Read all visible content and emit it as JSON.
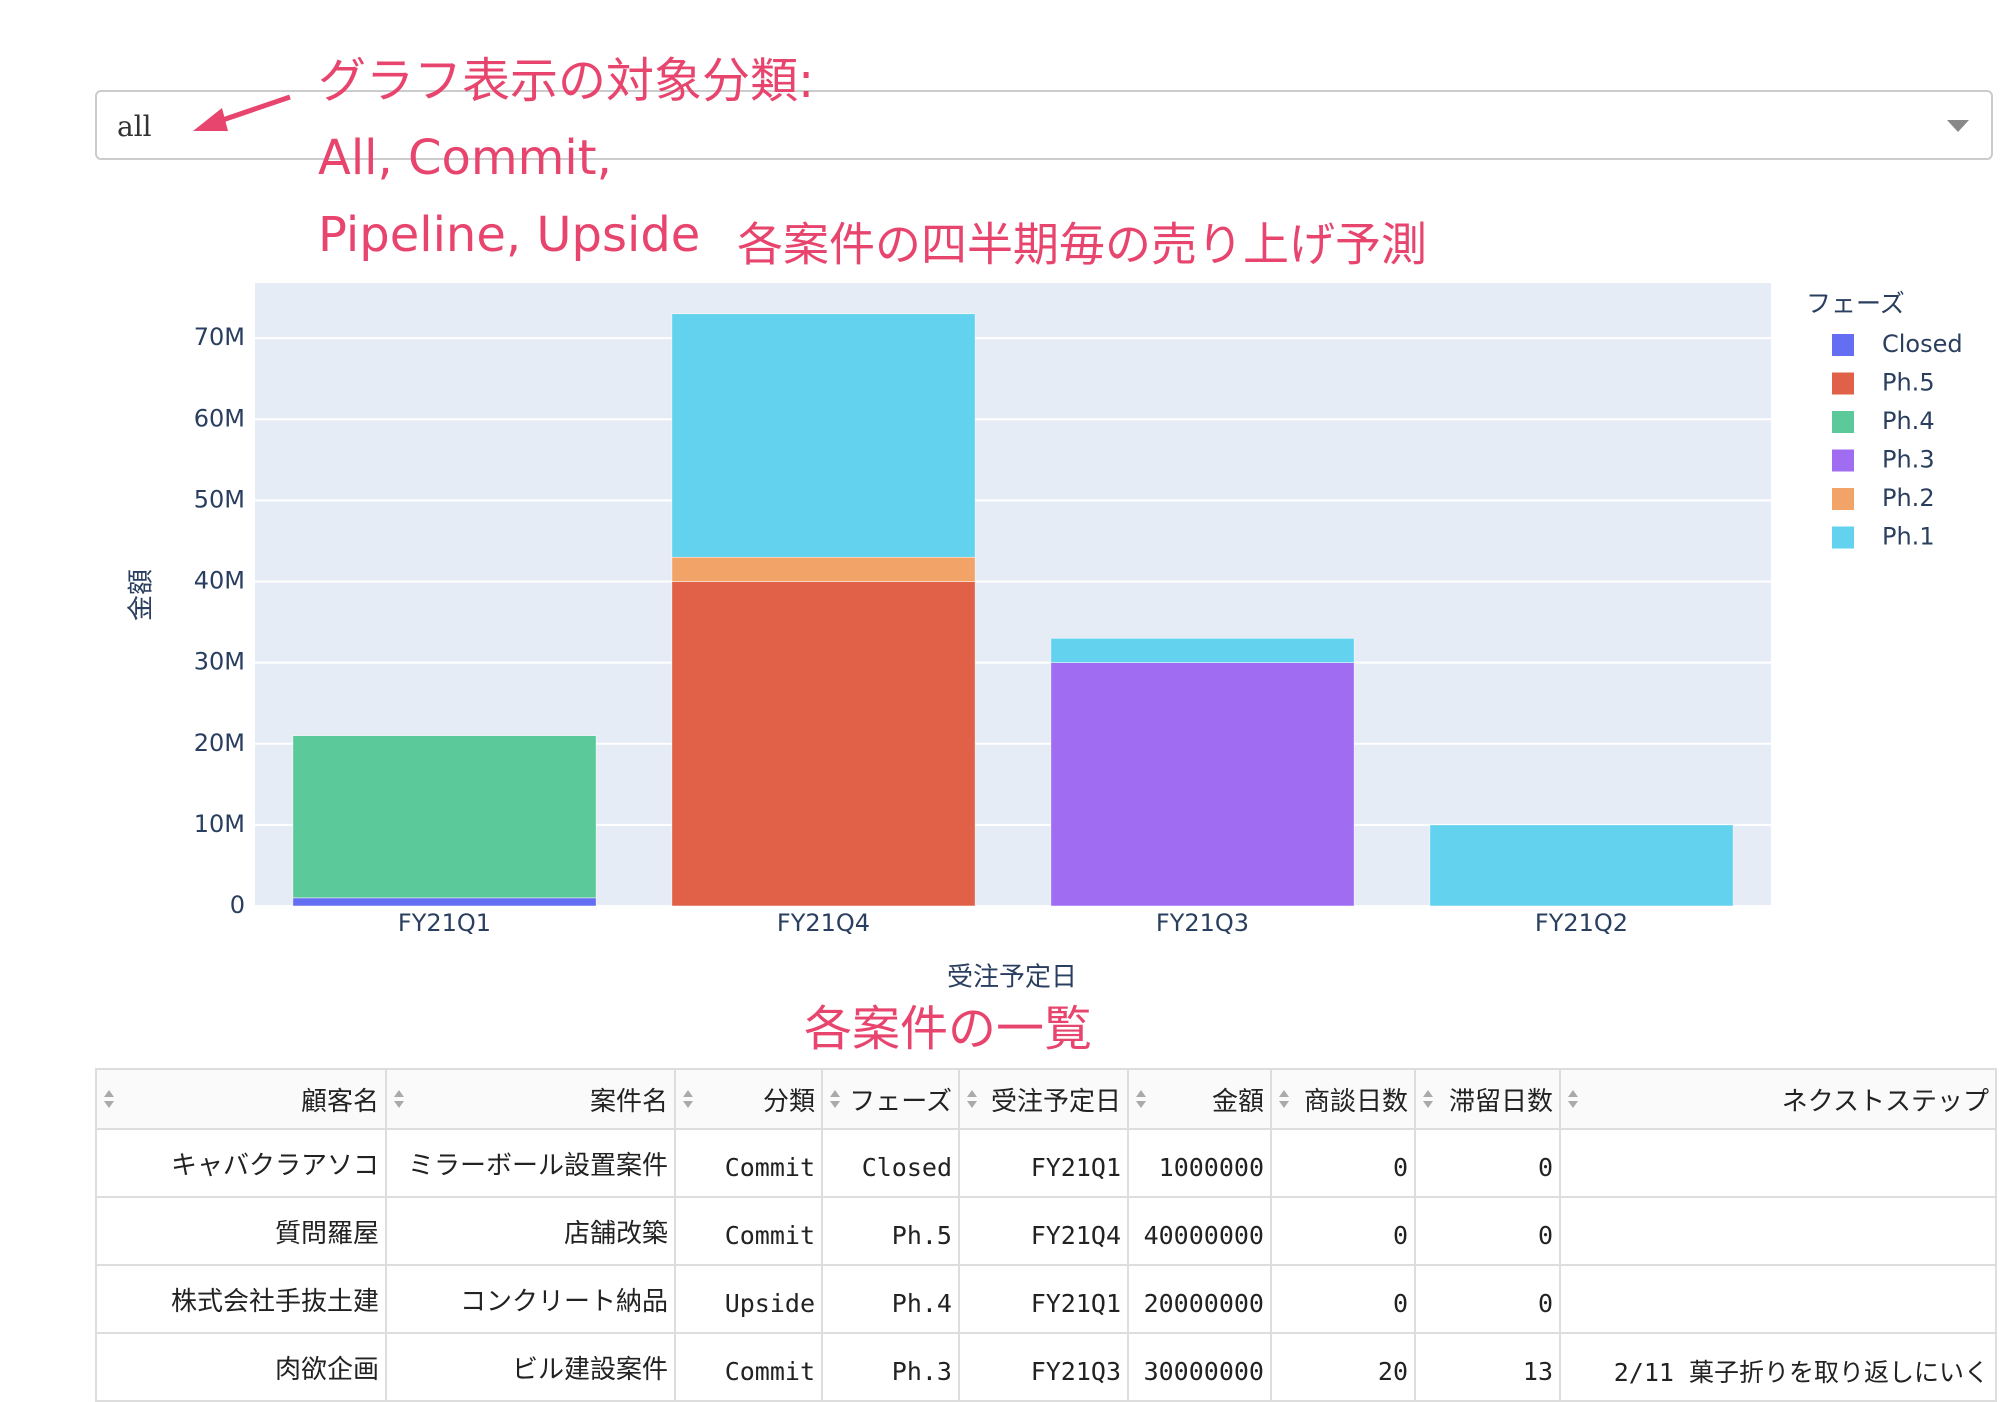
{
  "dropdown": {
    "value": "all"
  },
  "annotations": {
    "dropdown_note": [
      "グラフ表示の対象分類:",
      "All, Commit,",
      "Pipeline, Upside"
    ],
    "table_title": "各案件の一覧"
  },
  "chart_data": {
    "type": "stacked_bar",
    "title": "各案件の四半期毎の売り上げ予測",
    "x_label": "受注予定日",
    "y_label": "金額",
    "legend_title": "フェーズ",
    "legend_position": "right",
    "grid": true,
    "categories": [
      "FY21Q1",
      "FY21Q4",
      "FY21Q3",
      "FY21Q2"
    ],
    "series": [
      {
        "name": "Closed",
        "color": "#646ef2",
        "values": [
          1000000,
          null,
          null,
          null
        ]
      },
      {
        "name": "Ph.5",
        "color": "#e06048",
        "values": [
          null,
          40000000,
          null,
          null
        ]
      },
      {
        "name": "Ph.4",
        "color": "#5cc99a",
        "values": [
          20000000,
          null,
          null,
          null
        ]
      },
      {
        "name": "Ph.3",
        "color": "#a06cf2",
        "values": [
          null,
          null,
          30000000,
          null
        ]
      },
      {
        "name": "Ph.2",
        "color": "#f2a468",
        "values": [
          null,
          3000000,
          null,
          null
        ]
      },
      {
        "name": "Ph.1",
        "color": "#63d2ee",
        "values": [
          null,
          30000000,
          3000000,
          10000000
        ]
      }
    ],
    "ylim": [
      0,
      76800000
    ],
    "yticks": [
      0,
      {
        "value": 10000000,
        "label": "10M"
      },
      {
        "value": 20000000,
        "label": "20M"
      },
      {
        "value": 30000000,
        "label": "30M"
      },
      {
        "value": 40000000,
        "label": "40M"
      },
      {
        "value": 50000000,
        "label": "50M"
      },
      {
        "value": 60000000,
        "label": "60M"
      },
      {
        "value": 70000000,
        "label": "70M"
      }
    ]
  },
  "table": {
    "columns": [
      "顧客名",
      "案件名",
      "分類",
      "フェーズ",
      "受注予定日",
      "金額",
      "商談日数",
      "滞留日数",
      "ネクストステップ"
    ],
    "rows": [
      [
        "キャバクラアソコ",
        "ミラーボール設置案件",
        "Commit",
        "Closed",
        "FY21Q1",
        "1000000",
        "0",
        "0",
        ""
      ],
      [
        "質問羅屋",
        "店舗改築",
        "Commit",
        "Ph.5",
        "FY21Q4",
        "40000000",
        "0",
        "0",
        ""
      ],
      [
        "株式会社手抜土建",
        "コンクリート納品",
        "Upside",
        "Ph.4",
        "FY21Q1",
        "20000000",
        "0",
        "0",
        ""
      ],
      [
        "肉欲企画",
        "ビル建設案件",
        "Commit",
        "Ph.3",
        "FY21Q3",
        "30000000",
        "20",
        "13",
        "2/11 菓子折りを取り返しにいく"
      ]
    ]
  }
}
